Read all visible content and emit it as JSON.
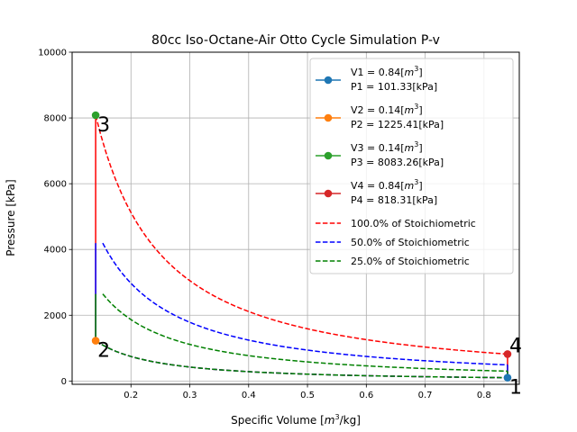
{
  "chart_data": {
    "type": "line",
    "title": "80cc Iso-Octane-Air Otto Cycle Simulation P-v",
    "xlabel_prefix": "Specific Volume [",
    "xlabel_unit_base": "m",
    "xlabel_unit_exp": "3",
    "xlabel_suffix": "/kg]",
    "ylabel": "Pressure [kPa]",
    "xlim": [
      0.1,
      0.86
    ],
    "ylim": [
      -100,
      10000
    ],
    "xticks": [
      0.2,
      0.3,
      0.4,
      0.5,
      0.6,
      0.7,
      0.8
    ],
    "xtick_labels": [
      "0.2",
      "0.3",
      "0.4",
      "0.5",
      "0.6",
      "0.7",
      "0.8"
    ],
    "yticks": [
      0,
      2000,
      4000,
      6000,
      8000,
      10000
    ],
    "ytick_labels": [
      "0",
      "2000",
      "4000",
      "6000",
      "8000",
      "10000"
    ],
    "grid": true,
    "legend_position": "top-right",
    "state_points": [
      {
        "label": "1",
        "v_line": "V1 = 0.84[",
        "v_unit_base": "m",
        "v_unit_exp": "3",
        "v_close": "]",
        "p_line": "P1 = 101.33[kPa]",
        "v": 0.84,
        "p": 101.33,
        "color": "#1f77b4"
      },
      {
        "label": "2",
        "v_line": "V2 = 0.14[",
        "v_unit_base": "m",
        "v_unit_exp": "3",
        "v_close": "]",
        "p_line": "P2 = 1225.41[kPa]",
        "v": 0.14,
        "p": 1225.41,
        "color": "#ff7f0e"
      },
      {
        "label": "3",
        "v_line": "V3 = 0.14[",
        "v_unit_base": "m",
        "v_unit_exp": "3",
        "v_close": "]",
        "p_line": "P3 = 8083.26[kPa]",
        "v": 0.14,
        "p": 8083.26,
        "color": "#2ca02c"
      },
      {
        "label": "4",
        "v_line": "V4 = 0.84[",
        "v_unit_base": "m",
        "v_unit_exp": "3",
        "v_close": "]",
        "p_line": "P4 = 818.31[kPa]",
        "v": 0.84,
        "p": 818.31,
        "color": "#d62728"
      }
    ],
    "series": [
      {
        "name": "100.0% of Stoichiometric",
        "color": "#ff0000",
        "v3": 0.14,
        "p3": 8083.26,
        "v4": 0.84,
        "p4": 818.31,
        "p_const_start": 1225.41
      },
      {
        "name": "50.0% of Stoichiometric",
        "color": "#0000ff",
        "v3": 0.14,
        "p3": 4650,
        "v4": 0.84,
        "p4": 490,
        "p_const_start": 1225.41
      },
      {
        "name": "25.0% of Stoichiometric",
        "color": "#008000",
        "v3": 0.14,
        "p3": 2940,
        "v4": 0.84,
        "p4": 300,
        "p_const_start": 1225.41
      }
    ],
    "compression": {
      "v1": 0.84,
      "p1": 101.33,
      "v2": 0.14,
      "p2": 1225.41
    }
  }
}
